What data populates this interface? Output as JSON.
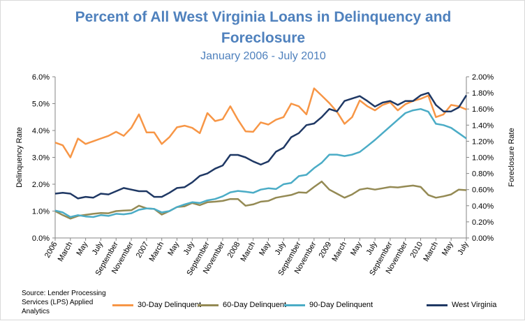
{
  "chart_data": {
    "type": "line",
    "title": "Percent of All West Virginia Loans in Delinquency and Foreclosure",
    "title_line1": "Percent of All West Virginia Loans in Delinquency and",
    "title_line2": "Foreclosure",
    "subtitle": "January 2006 - July 2010",
    "ylabel": "Delinquency Rate",
    "y2label": "Foreclosure Rate",
    "ylim": [
      0,
      6
    ],
    "y2lim": [
      0,
      2
    ],
    "yticks": [
      "0.0%",
      "1.0%",
      "2.0%",
      "3.0%",
      "4.0%",
      "5.0%",
      "6.0%"
    ],
    "y2ticks": [
      "0.00%",
      "0.20%",
      "0.40%",
      "0.60%",
      "0.80%",
      "1.00%",
      "1.20%",
      "1.40%",
      "1.60%",
      "1.80%",
      "2.00%"
    ],
    "xticks": [
      "2006",
      "March",
      "May",
      "July",
      "September",
      "November",
      "2007",
      "March",
      "May",
      "July",
      "September",
      "November",
      "2008",
      "March",
      "May",
      "July",
      "September",
      "November",
      "2009",
      "March",
      "May",
      "July",
      "September",
      "November",
      "2010",
      "March",
      "May",
      "July"
    ],
    "months": 55,
    "grid": false,
    "legend_position": "bottom",
    "series": [
      {
        "name": "30-Day Delinquent",
        "color": "#f79646",
        "axis": "left",
        "values": [
          3.55,
          3.45,
          3.0,
          3.7,
          3.5,
          3.6,
          3.7,
          3.8,
          3.95,
          3.8,
          4.1,
          4.6,
          3.93,
          3.93,
          3.5,
          3.75,
          4.12,
          4.18,
          4.1,
          3.9,
          4.65,
          4.35,
          4.42,
          4.9,
          4.4,
          3.97,
          3.95,
          4.3,
          4.22,
          4.4,
          4.5,
          5.0,
          4.9,
          4.6,
          5.57,
          5.3,
          5.02,
          4.7,
          4.25,
          4.5,
          5.12,
          4.9,
          4.75,
          4.95,
          5.05,
          4.75,
          4.98,
          5.1,
          5.18,
          5.3,
          4.5,
          4.6,
          4.95,
          4.9,
          4.78
        ]
      },
      {
        "name": "60-Day Delinquent",
        "color": "#948a54",
        "axis": "left",
        "values": [
          1.0,
          0.85,
          0.72,
          0.82,
          0.86,
          0.9,
          0.93,
          0.92,
          1.0,
          1.02,
          1.03,
          1.2,
          1.1,
          1.08,
          0.87,
          1.0,
          1.15,
          1.18,
          1.3,
          1.22,
          1.33,
          1.35,
          1.38,
          1.45,
          1.45,
          1.2,
          1.25,
          1.35,
          1.38,
          1.5,
          1.55,
          1.6,
          1.7,
          1.68,
          1.9,
          2.1,
          1.8,
          1.65,
          1.5,
          1.62,
          1.8,
          1.85,
          1.8,
          1.85,
          1.9,
          1.88,
          1.92,
          1.95,
          1.9,
          1.6,
          1.5,
          1.55,
          1.62,
          1.8,
          1.78
        ]
      },
      {
        "name": "90-Day Delinquent",
        "color": "#4bacc6",
        "axis": "left",
        "values": [
          1.02,
          0.95,
          0.78,
          0.85,
          0.8,
          0.78,
          0.85,
          0.82,
          0.9,
          0.88,
          0.92,
          1.05,
          1.1,
          1.08,
          0.95,
          1.0,
          1.15,
          1.25,
          1.33,
          1.3,
          1.4,
          1.45,
          1.55,
          1.7,
          1.75,
          1.72,
          1.68,
          1.8,
          1.85,
          1.82,
          2.0,
          2.05,
          2.3,
          2.35,
          2.6,
          2.8,
          3.1,
          3.1,
          3.05,
          3.1,
          3.2,
          3.42,
          3.65,
          3.9,
          4.15,
          4.4,
          4.65,
          4.75,
          4.8,
          4.7,
          4.25,
          4.2,
          4.1,
          3.9,
          3.7
        ]
      },
      {
        "name": "West Virginia",
        "color": "#1f3864",
        "axis": "right",
        "values": [
          0.55,
          0.56,
          0.55,
          0.49,
          0.51,
          0.5,
          0.55,
          0.54,
          0.58,
          0.62,
          0.6,
          0.58,
          0.58,
          0.51,
          0.51,
          0.56,
          0.62,
          0.63,
          0.69,
          0.77,
          0.8,
          0.86,
          0.9,
          1.03,
          1.03,
          1.0,
          0.95,
          0.91,
          0.95,
          1.07,
          1.12,
          1.25,
          1.3,
          1.4,
          1.42,
          1.5,
          1.6,
          1.57,
          1.7,
          1.73,
          1.76,
          1.7,
          1.63,
          1.68,
          1.7,
          1.65,
          1.7,
          1.7,
          1.77,
          1.8,
          1.65,
          1.57,
          1.57,
          1.62,
          1.77
        ]
      }
    ]
  },
  "source": "Source: Lender Processing Services (LPS) Applied Analytics"
}
